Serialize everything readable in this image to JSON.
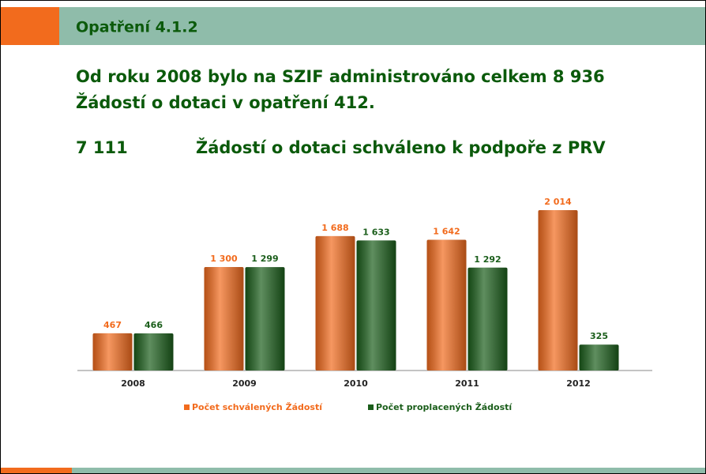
{
  "header": {
    "title": "Opatření 4.1.2"
  },
  "intro": [
    "Od roku 2008 bylo na SZIF administrováno celkem 8 936",
    "Žádostí o dotaci v opatření 412."
  ],
  "summary": {
    "count": "7 111",
    "text": "Žádostí o dotaci schváleno k podpoře z PRV"
  },
  "chart_data": {
    "type": "bar",
    "categories": [
      "2008",
      "2009",
      "2010",
      "2011",
      "2012"
    ],
    "series": [
      {
        "name": "Počet schválených Žádostí",
        "color": "#f26b1d",
        "values": [
          467,
          1300,
          1688,
          1642,
          2014
        ],
        "value_labels": [
          "467",
          "1 300",
          "1 688",
          "1 642",
          "2 014"
        ]
      },
      {
        "name": "Počet proplacených Žádostí",
        "color": "#1b5e1b",
        "values": [
          466,
          1299,
          1633,
          1292,
          325
        ],
        "value_labels": [
          "466",
          "1 299",
          "1 633",
          "1 292",
          "325"
        ]
      }
    ]
  }
}
